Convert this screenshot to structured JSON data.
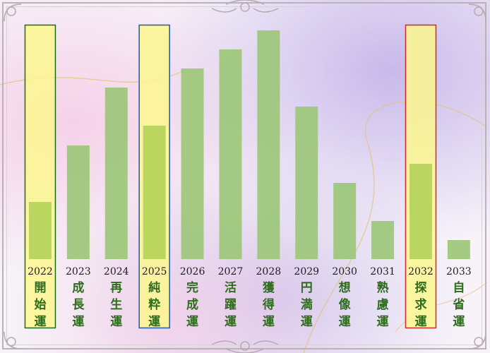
{
  "colors": {
    "bar": "#9cc77a",
    "highlight_fill": "#fbf78f",
    "highlight_bar": "#b5d35a",
    "year_text": "#1d1d1d",
    "label_text": "#2f6b1d",
    "box_green": "#1b6b1b",
    "box_blue": "#1f58a8",
    "box_red": "#d02a2a"
  },
  "chart_data": {
    "type": "bar",
    "categories": [
      "2022",
      "2023",
      "2024",
      "2025",
      "2026",
      "2027",
      "2028",
      "2029",
      "2030",
      "2031",
      "2032",
      "2033"
    ],
    "labels": [
      "開始運",
      "成長運",
      "再生運",
      "純粋運",
      "完成運",
      "活躍運",
      "獲得運",
      "円満運",
      "想像運",
      "熟慮運",
      "探求運",
      "自省運"
    ],
    "values": [
      81,
      161,
      243,
      189,
      270,
      297,
      324,
      216,
      108,
      54,
      135,
      27
    ],
    "ylim": [
      0,
      324
    ],
    "axes_visible": false,
    "grid": false,
    "highlights": [
      {
        "index": 0,
        "box": "green"
      },
      {
        "index": 3,
        "box": "blue"
      },
      {
        "index": 10,
        "box": "red"
      }
    ]
  }
}
